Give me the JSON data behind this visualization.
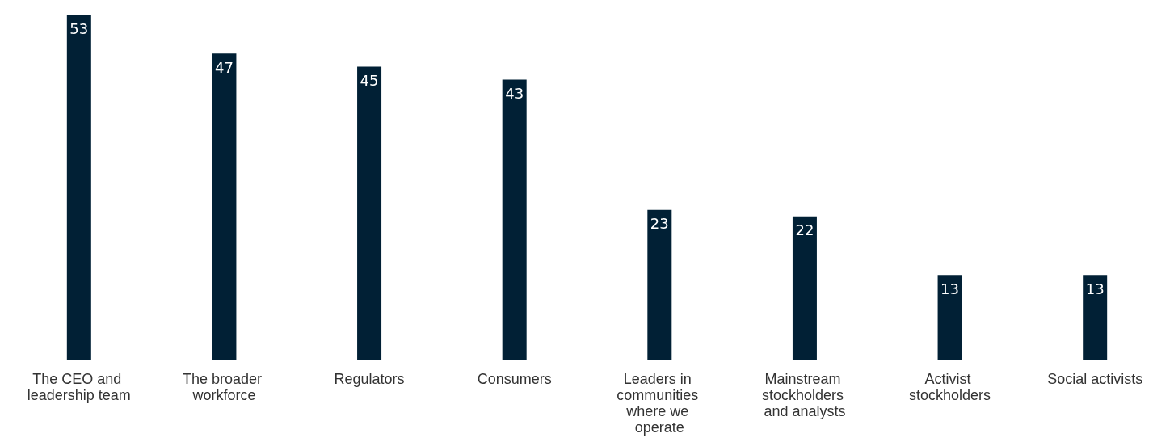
{
  "chart_data": {
    "type": "bar",
    "categories": [
      "The CEO and leadership team",
      "The broader workforce",
      "Regulators",
      "Consumers",
      "Leaders in communities where we operate",
      "Mainstream stockholders and analysts",
      "Activist stockholders",
      "Social activists"
    ],
    "values": [
      53,
      47,
      45,
      43,
      23,
      22,
      13,
      13
    ],
    "color": "#012035",
    "data_labels": true,
    "grid": false
  }
}
